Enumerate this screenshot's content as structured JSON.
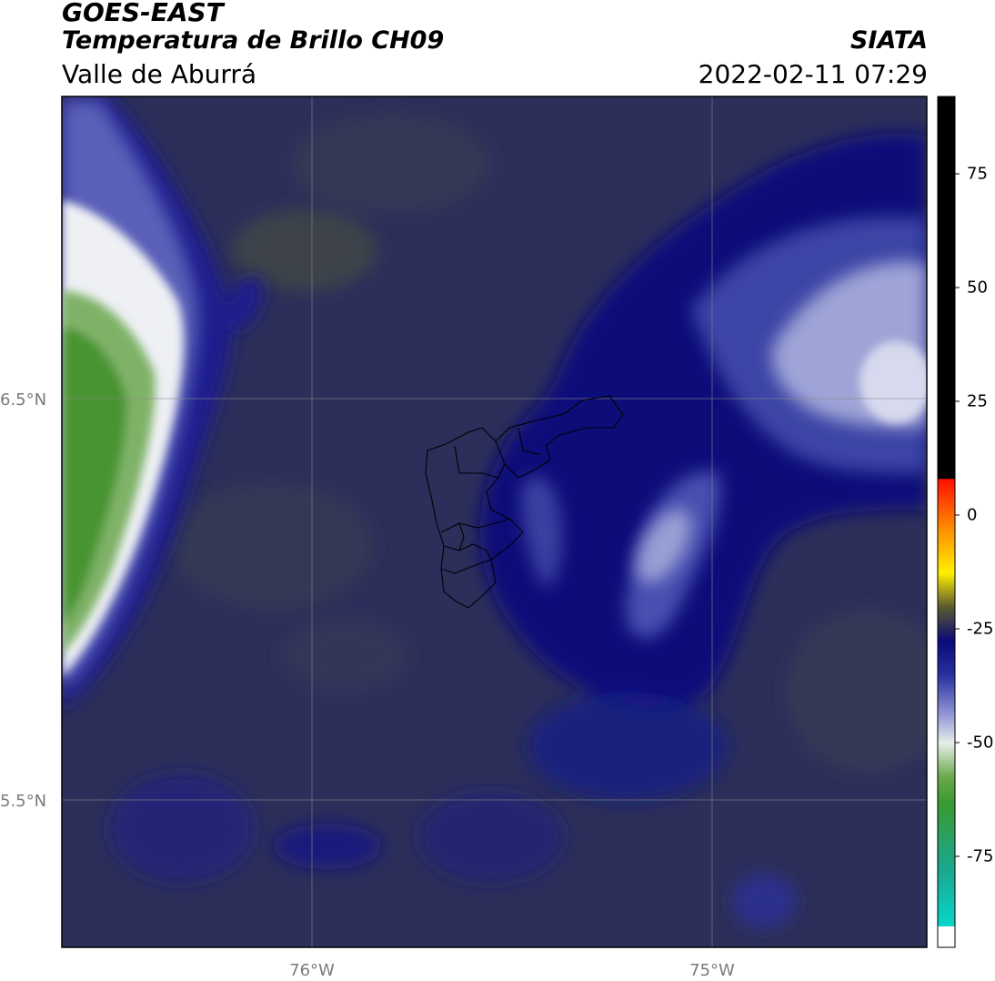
{
  "header": {
    "title": "GOES-EAST",
    "product": "Temperatura de Brillo CH09",
    "region": "Valle de Aburrá",
    "source": "SIATA",
    "datetime": "2022-02-11 07:29"
  },
  "map": {
    "lat_labels": [
      "6.5°N",
      "5.5°N"
    ],
    "lon_labels": [
      "76°W",
      "75°W"
    ],
    "gridlines": true,
    "colors": {
      "background": "#2c2f5a",
      "dark_blue": "#0a0a78",
      "mid_blue": "#3a40a0",
      "light_blue": "#9aa0d8",
      "white": "#f2f2f4",
      "green": "#4a9230",
      "olive": "#3e4546"
    }
  },
  "colorbar": {
    "ticks": [
      "75",
      "50",
      "25",
      "0",
      "-25",
      "-50",
      "-75"
    ],
    "tick_values": [
      75,
      50,
      25,
      0,
      -25,
      -50,
      -75
    ],
    "range": [
      -95,
      92
    ]
  }
}
